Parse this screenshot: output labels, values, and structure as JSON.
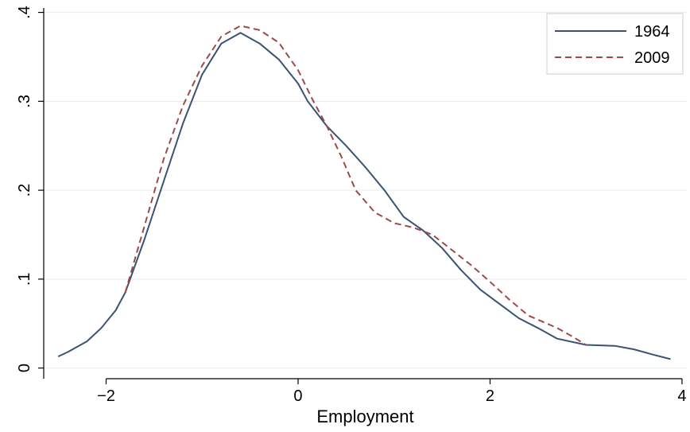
{
  "chart_data": {
    "type": "line",
    "title": "",
    "xlabel": "Employment",
    "ylabel": "",
    "xlim": [
      -2.65,
      4.05
    ],
    "ylim": [
      -0.012,
      0.405
    ],
    "xticks": [
      -2,
      0,
      2,
      4
    ],
    "xtick_labels": [
      "−2",
      "0",
      "2",
      "4"
    ],
    "yticks": [
      0,
      0.1,
      0.2,
      0.3,
      0.4
    ],
    "ytick_labels": [
      "0",
      ".1",
      ".2",
      ".3",
      ".4"
    ],
    "grid": true,
    "legend_position": "top-right",
    "series": [
      {
        "name": "1964",
        "color": "#3a5372",
        "dash": "solid",
        "x": [
          -2.5,
          -2.4,
          -2.2,
          -2.05,
          -1.9,
          -1.8,
          -1.6,
          -1.4,
          -1.2,
          -1.0,
          -0.8,
          -0.6,
          -0.4,
          -0.2,
          0.0,
          0.1,
          0.3,
          0.5,
          0.7,
          0.9,
          1.1,
          1.3,
          1.5,
          1.7,
          1.9,
          2.1,
          2.3,
          2.5,
          2.7,
          3.0,
          3.3,
          3.5,
          3.7,
          3.88
        ],
        "y": [
          0.013,
          0.018,
          0.03,
          0.045,
          0.065,
          0.085,
          0.145,
          0.21,
          0.275,
          0.33,
          0.365,
          0.377,
          0.365,
          0.347,
          0.32,
          0.3,
          0.272,
          0.25,
          0.226,
          0.2,
          0.17,
          0.155,
          0.135,
          0.11,
          0.088,
          0.072,
          0.056,
          0.045,
          0.033,
          0.026,
          0.025,
          0.021,
          0.015,
          0.01
        ]
      },
      {
        "name": "2009",
        "color": "#9c4a4a",
        "dash": "dashed",
        "x": [
          -1.8,
          -1.6,
          -1.4,
          -1.2,
          -1.0,
          -0.8,
          -0.6,
          -0.4,
          -0.2,
          0.0,
          0.15,
          0.3,
          0.45,
          0.6,
          0.8,
          1.0,
          1.2,
          1.4,
          1.6,
          1.8,
          2.0,
          2.2,
          2.4,
          2.7,
          2.85,
          3.0
        ],
        "y": [
          0.085,
          0.16,
          0.235,
          0.295,
          0.34,
          0.373,
          0.385,
          0.38,
          0.366,
          0.335,
          0.302,
          0.272,
          0.238,
          0.2,
          0.175,
          0.163,
          0.158,
          0.15,
          0.133,
          0.116,
          0.097,
          0.077,
          0.059,
          0.045,
          0.036,
          0.026
        ]
      }
    ]
  }
}
